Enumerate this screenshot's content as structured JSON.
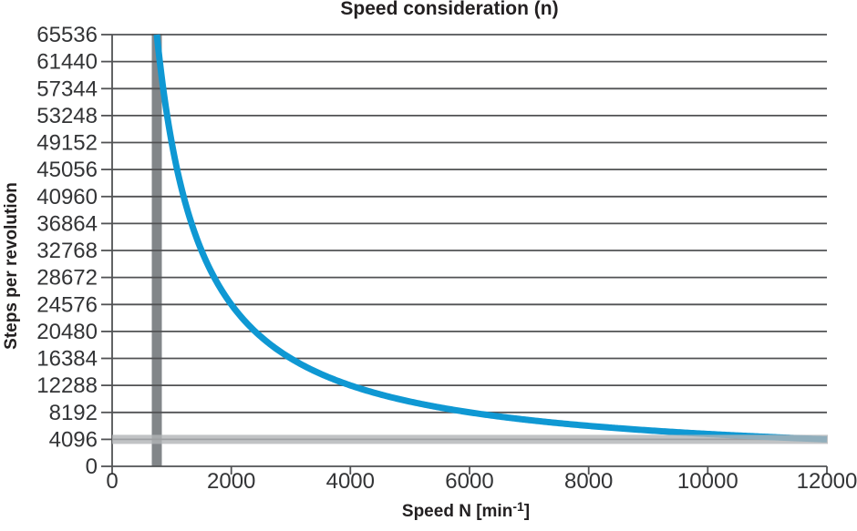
{
  "chart_data": {
    "type": "line",
    "title": "Speed consideration (n)",
    "ylabel": "Steps per revolution",
    "xlabel_parts": {
      "pre": "Speed N [min",
      "sup": "-1",
      "post": "]"
    },
    "xlim": [
      0,
      12000
    ],
    "ylim": [
      0,
      65536
    ],
    "xticks": [
      0,
      2000,
      4000,
      6000,
      8000,
      10000,
      12000
    ],
    "yticks": [
      0,
      4096,
      8192,
      12288,
      16384,
      20480,
      24576,
      28672,
      32768,
      36864,
      40960,
      45056,
      49152,
      53248,
      57344,
      61440,
      65536
    ],
    "grid": "horizontal",
    "legend": "none",
    "series": [
      {
        "name": "steps-per-revolution-vs-speed",
        "color": "#0f98d3",
        "relation": "y = 49152000 / x",
        "constant": 49152000,
        "x_start": 750,
        "x_end": 12000,
        "points": [
          [
            750,
            65536
          ],
          [
            1000,
            49152
          ],
          [
            1500,
            32768
          ],
          [
            2000,
            24576
          ],
          [
            3000,
            16384
          ],
          [
            4000,
            12288
          ],
          [
            6000,
            8192
          ],
          [
            8000,
            6144
          ],
          [
            10000,
            4915
          ],
          [
            12000,
            4096
          ]
        ]
      }
    ],
    "annotations": [
      {
        "type": "vline",
        "x": 750,
        "color": "#828689",
        "label": "speed-marker"
      },
      {
        "type": "hline",
        "y": 4096,
        "color": "#b2b4b6",
        "opacity": 0.8,
        "label": "resolution-marker"
      }
    ],
    "colors": {
      "axis": "#515254",
      "grid": "#515254",
      "tick_text": "#333436",
      "title_text": "#232021",
      "background": "#ffffff"
    }
  }
}
